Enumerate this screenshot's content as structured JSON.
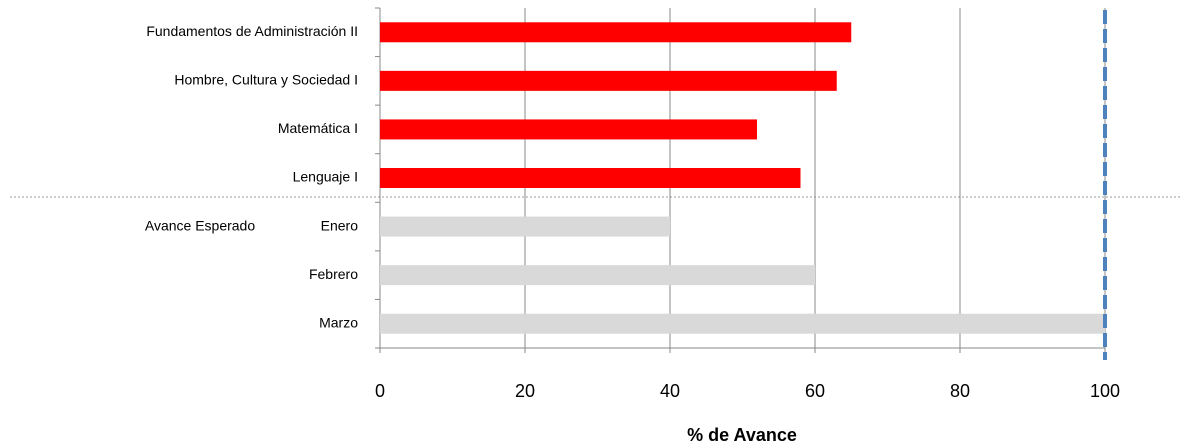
{
  "chart_data": {
    "type": "barh",
    "categories": [
      "Fundamentos de Administración II",
      "Hombre, Cultura y Sociedad I",
      "Matemática I",
      "Lenguaje I",
      "Enero",
      "Febrero",
      "Marzo"
    ],
    "values": [
      65,
      63,
      52,
      58,
      40,
      60,
      100
    ],
    "colors": [
      "#ff0000",
      "#ff0000",
      "#ff0000",
      "#ff0000",
      "#d9d9d9",
      "#d9d9d9",
      "#d9d9d9"
    ],
    "group_label": "Avance Esperado",
    "target_line": 100,
    "target_color": "#4f81bd",
    "xlabel": "% de Avance",
    "xlim": [
      0,
      100
    ],
    "xticks": [
      0,
      20,
      40,
      60,
      80,
      100
    ],
    "grid": true
  }
}
